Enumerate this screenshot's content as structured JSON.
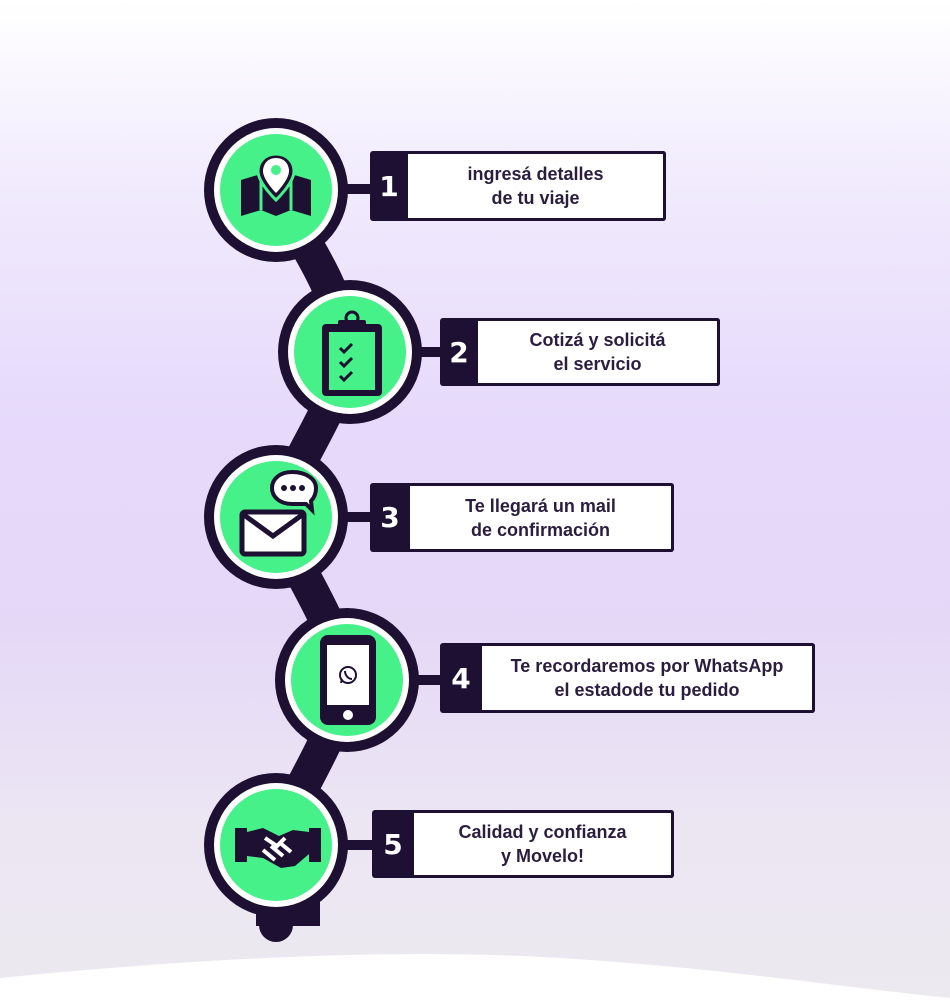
{
  "steps": [
    {
      "number": "1",
      "line1": "ingresá detalles",
      "line2": "de tu viaje",
      "icon": "map-pin-icon"
    },
    {
      "number": "2",
      "line1": "Cotizá y solicitá",
      "line2": "el servicio",
      "icon": "clipboard-checklist-icon"
    },
    {
      "number": "3",
      "line1": "Te llegará un mail",
      "line2": "de confirmación",
      "icon": "mail-chat-icon"
    },
    {
      "number": "4",
      "line1": "Te recordaremos por WhatsApp",
      "line2": "el estadode tu pedido",
      "icon": "phone-whatsapp-icon"
    },
    {
      "number": "5",
      "line1": "Calidad y confianza",
      "line2": "y Movelo!",
      "icon": "handshake-icon"
    }
  ],
  "colors": {
    "dark": "#1e1032",
    "green": "#45f188",
    "white": "#ffffff",
    "text": "#2a1d3f"
  }
}
